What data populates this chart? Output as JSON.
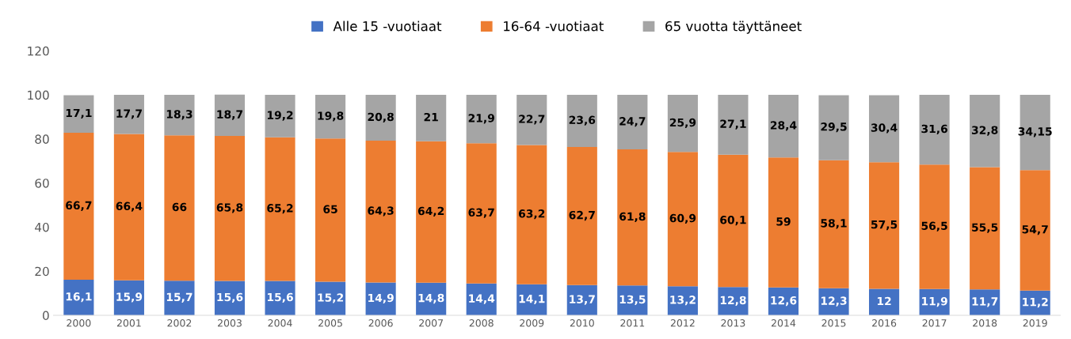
{
  "chart_data": {
    "type": "bar",
    "stacked": true,
    "categories": [
      "2000",
      "2001",
      "2002",
      "2003",
      "2004",
      "2005",
      "2006",
      "2007",
      "2008",
      "2009",
      "2010",
      "2011",
      "2012",
      "2013",
      "2014",
      "2015",
      "2016",
      "2017",
      "2018",
      "2019"
    ],
    "series": [
      {
        "name": "Alle 15 -vuotiaat",
        "color": "#4472c4",
        "values": [
          16.1,
          15.9,
          15.7,
          15.6,
          15.6,
          15.2,
          14.9,
          14.8,
          14.4,
          14.1,
          13.7,
          13.5,
          13.2,
          12.8,
          12.6,
          12.3,
          12,
          11.9,
          11.7,
          11.2
        ],
        "value_labels": [
          "16,1",
          "15,9",
          "15,7",
          "15,6",
          "15,6",
          "15,2",
          "14,9",
          "14,8",
          "14,4",
          "14,1",
          "13,7",
          "13,5",
          "13,2",
          "12,8",
          "12,6",
          "12,3",
          "12",
          "11,9",
          "11,7",
          "11,2"
        ]
      },
      {
        "name": "16-64 -vuotiaat",
        "color": "#ed7d31",
        "values": [
          66.7,
          66.4,
          66,
          65.8,
          65.2,
          65,
          64.3,
          64.2,
          63.7,
          63.2,
          62.7,
          61.8,
          60.9,
          60.1,
          59,
          58.1,
          57.5,
          56.5,
          55.5,
          54.7
        ],
        "value_labels": [
          "66,7",
          "66,4",
          "66",
          "65,8",
          "65,2",
          "65",
          "64,3",
          "64,2",
          "63,7",
          "63,2",
          "62,7",
          "61,8",
          "60,9",
          "60,1",
          "59",
          "58,1",
          "57,5",
          "56,5",
          "55,5",
          "54,7"
        ]
      },
      {
        "name": "65 vuotta täyttäneet",
        "color": "#a5a5a5",
        "values": [
          17.1,
          17.7,
          18.3,
          18.7,
          19.2,
          19.8,
          20.8,
          21,
          21.9,
          22.7,
          23.6,
          24.7,
          25.9,
          27.1,
          28.4,
          29.5,
          30.4,
          31.6,
          32.8,
          34.15
        ],
        "value_labels": [
          "17,1",
          "17,7",
          "18,3",
          "18,7",
          "19,2",
          "19,8",
          "20,8",
          "21",
          "21,9",
          "22,7",
          "23,6",
          "24,7",
          "25,9",
          "27,1",
          "28,4",
          "29,5",
          "30,4",
          "31,6",
          "32,8",
          "34,15"
        ]
      }
    ],
    "ylim": [
      0,
      120
    ],
    "yticks": [
      0,
      20,
      40,
      60,
      80,
      100,
      120
    ],
    "grid": false,
    "legend": "top"
  }
}
